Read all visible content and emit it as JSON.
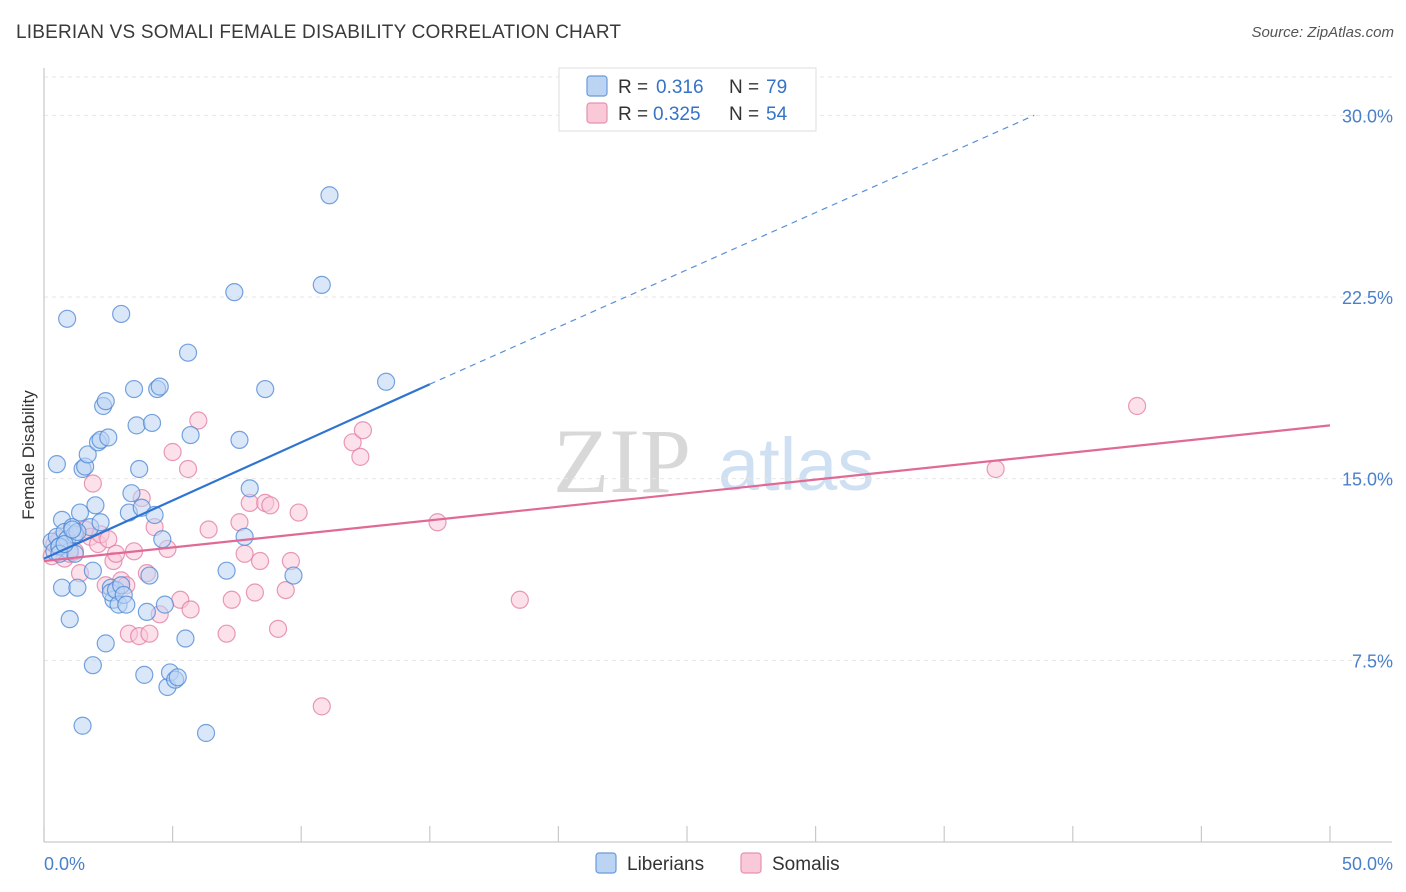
{
  "header": {
    "title": "LIBERIAN VS SOMALI FEMALE DISABILITY CORRELATION CHART",
    "source": "Source: ZipAtlas.com"
  },
  "watermark": {
    "zip": "ZIP",
    "atlas": "atlas"
  },
  "legend": {
    "r_label": "R =",
    "n_label": "N =",
    "rows": [
      {
        "name": "Liberians",
        "r": "0.316",
        "n": "79",
        "fill": "#bcd4f4",
        "stroke": "#6a9ad8"
      },
      {
        "name": "Somalis",
        "r": "0.325",
        "n": "54",
        "fill": "#f9c9d8",
        "stroke": "#e493ae"
      }
    ]
  },
  "chart_data": {
    "type": "scatter",
    "title": "LIBERIAN VS SOMALI FEMALE DISABILITY CORRELATION CHART",
    "xlabel": "",
    "ylabel": "Female Disability",
    "xlim": [
      0,
      50
    ],
    "ylim": [
      0,
      31.5
    ],
    "x_tick_labels": {
      "min": "0.0%",
      "max": "50.0%"
    },
    "y_ticks": [
      7.5,
      15.0,
      22.5,
      30.0
    ],
    "y_tick_labels": [
      "7.5%",
      "15.0%",
      "22.5%",
      "30.0%"
    ],
    "grid": true,
    "series": [
      {
        "name": "Liberians",
        "color": "#4a86d4",
        "fill": "#bcd4f4",
        "trend": {
          "x0": 0,
          "y0": 11.7,
          "x1": 15,
          "y1": 18.9,
          "dash_to_x": 38.5,
          "dash_to_y": 30.0,
          "color": "#2f74d0"
        },
        "points": [
          [
            0.3,
            12.4
          ],
          [
            0.4,
            12.0
          ],
          [
            0.5,
            12.6
          ],
          [
            0.6,
            12.2
          ],
          [
            0.7,
            13.3
          ],
          [
            0.8,
            12.8
          ],
          [
            0.9,
            12.5
          ],
          [
            1.0,
            12.0
          ],
          [
            1.1,
            13.0
          ],
          [
            1.2,
            12.7
          ],
          [
            0.5,
            15.6
          ],
          [
            0.6,
            12.2
          ],
          [
            0.7,
            10.5
          ],
          [
            1.0,
            9.2
          ],
          [
            1.2,
            11.9
          ],
          [
            1.3,
            10.5
          ],
          [
            1.4,
            13.6
          ],
          [
            1.5,
            15.4
          ],
          [
            1.6,
            15.5
          ],
          [
            1.7,
            16.0
          ],
          [
            1.8,
            13.0
          ],
          [
            1.9,
            11.2
          ],
          [
            2.0,
            13.9
          ],
          [
            2.1,
            16.5
          ],
          [
            2.2,
            16.6
          ],
          [
            2.3,
            18.0
          ],
          [
            2.4,
            18.2
          ],
          [
            2.5,
            16.7
          ],
          [
            2.6,
            10.5
          ],
          [
            2.7,
            10.0
          ],
          [
            1.5,
            4.8
          ],
          [
            1.9,
            7.3
          ],
          [
            2.4,
            8.2
          ],
          [
            2.6,
            10.3
          ],
          [
            2.8,
            10.4
          ],
          [
            2.9,
            9.8
          ],
          [
            3.0,
            10.6
          ],
          [
            3.1,
            10.2
          ],
          [
            3.2,
            9.8
          ],
          [
            3.3,
            13.6
          ],
          [
            3.5,
            18.7
          ],
          [
            3.4,
            14.4
          ],
          [
            3.6,
            17.2
          ],
          [
            3.7,
            15.4
          ],
          [
            3.8,
            13.8
          ],
          [
            3.9,
            6.9
          ],
          [
            4.0,
            9.5
          ],
          [
            4.1,
            11.0
          ],
          [
            4.2,
            17.3
          ],
          [
            4.3,
            13.5
          ],
          [
            4.4,
            18.7
          ],
          [
            4.5,
            18.8
          ],
          [
            4.6,
            12.5
          ],
          [
            4.7,
            9.8
          ],
          [
            4.8,
            6.4
          ],
          [
            4.9,
            7.0
          ],
          [
            5.1,
            6.7
          ],
          [
            5.2,
            6.8
          ],
          [
            5.5,
            8.4
          ],
          [
            5.6,
            20.2
          ],
          [
            5.7,
            16.8
          ],
          [
            6.3,
            4.5
          ],
          [
            7.1,
            11.2
          ],
          [
            7.4,
            22.7
          ],
          [
            7.6,
            16.6
          ],
          [
            7.8,
            12.6
          ],
          [
            8.0,
            14.6
          ],
          [
            8.6,
            18.7
          ],
          [
            9.7,
            11.0
          ],
          [
            10.8,
            23.0
          ],
          [
            11.1,
            26.7
          ],
          [
            13.3,
            19.0
          ],
          [
            0.9,
            21.6
          ],
          [
            3.0,
            21.8
          ],
          [
            1.3,
            12.8
          ],
          [
            0.6,
            11.9
          ],
          [
            0.8,
            12.3
          ],
          [
            1.1,
            12.9
          ],
          [
            2.2,
            13.2
          ]
        ]
      },
      {
        "name": "Somalis",
        "color": "#e07aa0",
        "fill": "#f9c9d8",
        "trend": {
          "x0": 0,
          "y0": 11.6,
          "x1": 50,
          "y1": 17.2,
          "color": "#e06a95"
        },
        "points": [
          [
            0.3,
            11.8
          ],
          [
            0.4,
            12.3
          ],
          [
            0.6,
            12.5
          ],
          [
            0.8,
            11.7
          ],
          [
            1.0,
            11.9
          ],
          [
            1.2,
            12.0
          ],
          [
            1.4,
            11.1
          ],
          [
            1.6,
            12.9
          ],
          [
            1.8,
            12.6
          ],
          [
            1.9,
            14.8
          ],
          [
            2.1,
            12.3
          ],
          [
            2.2,
            12.7
          ],
          [
            2.4,
            10.6
          ],
          [
            2.5,
            12.5
          ],
          [
            2.7,
            11.6
          ],
          [
            2.8,
            11.9
          ],
          [
            3.0,
            10.8
          ],
          [
            3.2,
            10.6
          ],
          [
            3.3,
            8.6
          ],
          [
            3.5,
            12.0
          ],
          [
            3.7,
            8.5
          ],
          [
            3.8,
            14.2
          ],
          [
            4.0,
            11.1
          ],
          [
            4.1,
            8.6
          ],
          [
            4.3,
            13.0
          ],
          [
            4.5,
            9.4
          ],
          [
            4.8,
            12.1
          ],
          [
            5.0,
            16.1
          ],
          [
            5.3,
            10.0
          ],
          [
            5.6,
            15.4
          ],
          [
            5.7,
            9.6
          ],
          [
            6.0,
            17.4
          ],
          [
            6.4,
            12.9
          ],
          [
            7.1,
            8.6
          ],
          [
            7.3,
            10.0
          ],
          [
            7.6,
            13.2
          ],
          [
            7.8,
            11.9
          ],
          [
            8.0,
            14.0
          ],
          [
            8.2,
            10.3
          ],
          [
            8.4,
            11.6
          ],
          [
            8.6,
            14.0
          ],
          [
            8.8,
            13.9
          ],
          [
            9.1,
            8.8
          ],
          [
            9.4,
            10.4
          ],
          [
            9.6,
            11.6
          ],
          [
            9.9,
            13.6
          ],
          [
            10.8,
            5.6
          ],
          [
            12.0,
            16.5
          ],
          [
            12.4,
            17.0
          ],
          [
            12.3,
            15.9
          ],
          [
            15.3,
            13.2
          ],
          [
            18.5,
            10.0
          ],
          [
            37.0,
            15.4
          ],
          [
            42.5,
            18.0
          ]
        ]
      }
    ]
  }
}
